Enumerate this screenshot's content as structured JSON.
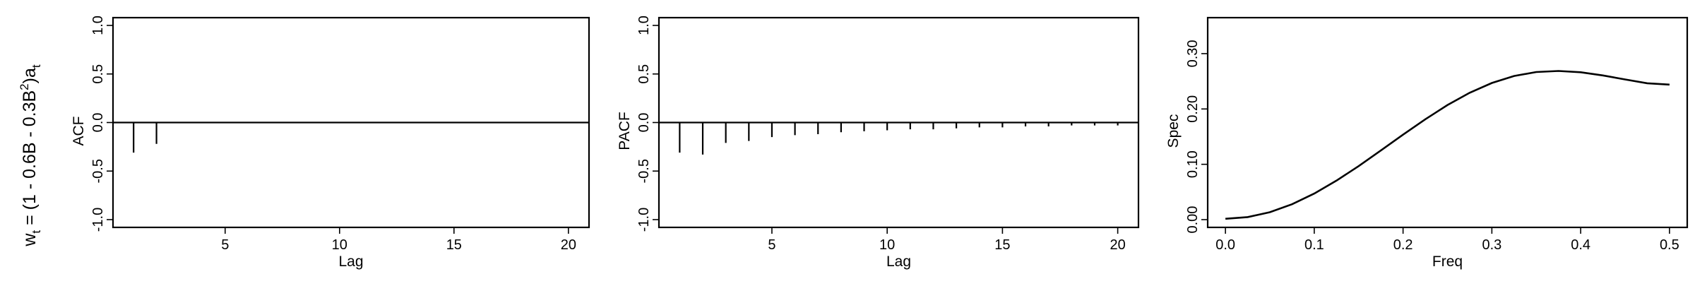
{
  "row_label": {
    "base": "w",
    "base_sub": "t",
    "eq": " = (1 - 0.6B - 0.3B",
    "sup": "2",
    "close": ")a",
    "close_sub": "t"
  },
  "chart_data": [
    {
      "type": "bar",
      "id": "acf",
      "xlabel": "Lag",
      "ylabel": "ACF",
      "xlim": [
        0.1,
        20.9
      ],
      "ylim": [
        -1.08,
        1.08
      ],
      "xticks": [
        5,
        10,
        15,
        20
      ],
      "yticks": [
        -1.0,
        -0.5,
        0.0,
        0.5,
        1.0
      ],
      "ytick_labels": [
        "-1.0",
        "-0.5",
        "0.0",
        "0.5",
        "1.0"
      ],
      "x": [
        1,
        2,
        3,
        4,
        5,
        6,
        7,
        8,
        9,
        10,
        11,
        12,
        13,
        14,
        15,
        16,
        17,
        18,
        19,
        20
      ],
      "values": [
        -0.31,
        -0.22,
        0,
        0,
        0,
        0,
        0,
        0,
        0,
        0,
        0,
        0,
        0,
        0,
        0,
        0,
        0,
        0,
        0,
        0
      ]
    },
    {
      "type": "bar",
      "id": "pacf",
      "xlabel": "Lag",
      "ylabel": "PACF",
      "xlim": [
        0.1,
        20.9
      ],
      "ylim": [
        -1.08,
        1.08
      ],
      "xticks": [
        5,
        10,
        15,
        20
      ],
      "yticks": [
        -1.0,
        -0.5,
        0.0,
        0.5,
        1.0
      ],
      "ytick_labels": [
        "-1.0",
        "-0.5",
        "0.0",
        "0.5",
        "1.0"
      ],
      "x": [
        1,
        2,
        3,
        4,
        5,
        6,
        7,
        8,
        9,
        10,
        11,
        12,
        13,
        14,
        15,
        16,
        17,
        18,
        19,
        20
      ],
      "values": [
        -0.31,
        -0.33,
        -0.21,
        -0.19,
        -0.15,
        -0.13,
        -0.12,
        -0.1,
        -0.09,
        -0.08,
        -0.07,
        -0.07,
        -0.06,
        -0.05,
        -0.05,
        -0.04,
        -0.04,
        -0.03,
        -0.03,
        -0.03
      ]
    },
    {
      "type": "line",
      "id": "spec",
      "xlabel": "Freq",
      "ylabel": "Spec",
      "xlim": [
        -0.02,
        0.52
      ],
      "ylim": [
        -0.014,
        0.365
      ],
      "xticks": [
        0.0,
        0.1,
        0.2,
        0.3,
        0.4,
        0.5
      ],
      "xtick_labels": [
        "0.0",
        "0.1",
        "0.2",
        "0.3",
        "0.4",
        "0.5"
      ],
      "yticks": [
        0.0,
        0.1,
        0.2,
        0.3
      ],
      "ytick_labels": [
        "0.00",
        "0.10",
        "0.20",
        "0.30"
      ],
      "x": [
        0.0,
        0.025,
        0.05,
        0.075,
        0.1,
        0.125,
        0.15,
        0.175,
        0.2,
        0.225,
        0.25,
        0.275,
        0.3,
        0.325,
        0.35,
        0.375,
        0.4,
        0.425,
        0.45,
        0.475,
        0.5
      ],
      "values": [
        0.0016,
        0.0046,
        0.0134,
        0.0278,
        0.0471,
        0.0705,
        0.0968,
        0.125,
        0.1536,
        0.1814,
        0.207,
        0.2292,
        0.247,
        0.2596,
        0.2668,
        0.2687,
        0.2663,
        0.2606,
        0.2533,
        0.2465,
        0.244
      ]
    }
  ]
}
